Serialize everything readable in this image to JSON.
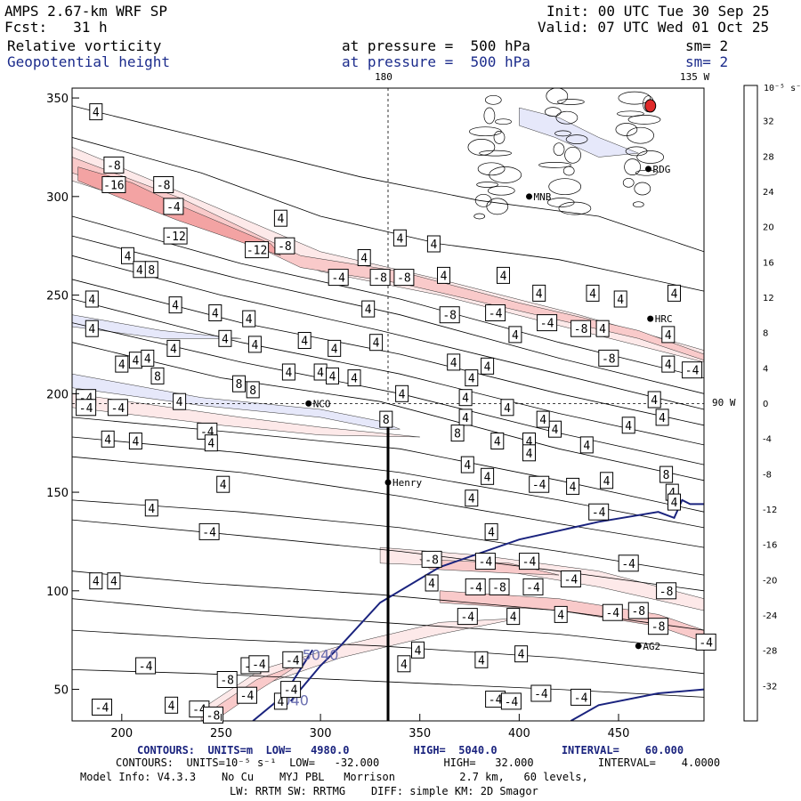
{
  "header": {
    "model": "AMPS 2.67-km WRF SP",
    "forecast": "Fcst:   31 h",
    "field1": "Relative vorticity",
    "field2": "Geopotential height",
    "init": "Init: 00 UTC Tue 30 Sep 25",
    "valid": "Valid: 07 UTC Wed 01 Oct 25",
    "pressure1": "at pressure =  500 hPa",
    "pressure2": "at pressure =  500 hPa",
    "sm1": "sm= 2",
    "sm2": "sm= 2"
  },
  "lon_labels": {
    "top_180": "180",
    "top_135w": "135 W",
    "right_90w": "90 W"
  },
  "colors": {
    "line_navy": "#1a237e",
    "neg_shades": [
      "#fde9e9",
      "#f9caca",
      "#f3a3a3",
      "#ee7a7a",
      "#e84f4f",
      "#e02a2a",
      "#ff0000"
    ],
    "pos_shades": [
      "#e6e8fa",
      "#c9cdf3",
      "#a5aaea",
      "#7d83df",
      "#5058d3",
      "#2a32c8",
      "#0000ff"
    ]
  },
  "stations": [
    {
      "name": "NCO",
      "x": 294,
      "y": 195
    },
    {
      "name": "Henry",
      "x": 334,
      "y": 155
    },
    {
      "name": "HRC",
      "x": 466,
      "y": 238
    },
    {
      "name": "AG2",
      "x": 460,
      "y": 72
    },
    {
      "name": "RDG",
      "x": 465,
      "y": 314
    },
    {
      "name": "MNB",
      "x": 405,
      "y": 300
    }
  ],
  "colorbar": {
    "unit": "10⁻⁵ s⁻¹",
    "ticks": [
      "32",
      "28",
      "24",
      "20",
      "16",
      "12",
      "8",
      "4",
      "0",
      "-4",
      "-8",
      "-12",
      "-16",
      "-20",
      "-24",
      "-28",
      "-32"
    ]
  },
  "chart_data": {
    "type": "contour",
    "title": "Relative vorticity / Geopotential height at 500 hPa",
    "x_range": [
      175,
      493
    ],
    "y_range": [
      34,
      355
    ],
    "x_ticks": [
      200,
      250,
      300,
      350,
      400,
      450
    ],
    "y_ticks": [
      50,
      100,
      150,
      200,
      250,
      300,
      350
    ],
    "vorticity_contours": {
      "units": "10^-5 s^-1",
      "low": -32.0,
      "high": 32.0,
      "interval": 4.0,
      "labels": [
        {
          "v": 4,
          "x": 187,
          "y": 343
        },
        {
          "v": -8,
          "x": 196,
          "y": 316
        },
        {
          "v": -16,
          "x": 196,
          "y": 306
        },
        {
          "v": -8,
          "x": 221,
          "y": 306
        },
        {
          "v": -4,
          "x": 226,
          "y": 295
        },
        {
          "v": 4,
          "x": 203,
          "y": 270
        },
        {
          "v": -12,
          "x": 227,
          "y": 280
        },
        {
          "v": 4,
          "x": 209,
          "y": 263
        },
        {
          "v": 8,
          "x": 215,
          "y": 263
        },
        {
          "v": -12,
          "x": 268,
          "y": 273
        },
        {
          "v": -8,
          "x": 282,
          "y": 275
        },
        {
          "v": 4,
          "x": 280,
          "y": 289
        },
        {
          "v": 4,
          "x": 322,
          "y": 269
        },
        {
          "v": 4,
          "x": 340,
          "y": 279
        },
        {
          "v": 4,
          "x": 357,
          "y": 276
        },
        {
          "v": -4,
          "x": 309,
          "y": 259
        },
        {
          "v": -8,
          "x": 330,
          "y": 259
        },
        {
          "v": -8,
          "x": 342,
          "y": 259
        },
        {
          "v": 4,
          "x": 362,
          "y": 260
        },
        {
          "v": 4,
          "x": 392,
          "y": 260
        },
        {
          "v": 4,
          "x": 185,
          "y": 248
        },
        {
          "v": 4,
          "x": 227,
          "y": 245
        },
        {
          "v": 4,
          "x": 247,
          "y": 241
        },
        {
          "v": 4,
          "x": 252,
          "y": 228
        },
        {
          "v": 4,
          "x": 267,
          "y": 225
        },
        {
          "v": 4,
          "x": 292,
          "y": 227
        },
        {
          "v": 4,
          "x": 264,
          "y": 238
        },
        {
          "v": 4,
          "x": 207,
          "y": 217
        },
        {
          "v": 4,
          "x": 213,
          "y": 218
        },
        {
          "v": 4,
          "x": 226,
          "y": 223
        },
        {
          "v": 4,
          "x": 200,
          "y": 215
        },
        {
          "v": 4,
          "x": 185,
          "y": 233
        },
        {
          "v": -8,
          "x": 365,
          "y": 240
        },
        {
          "v": -4,
          "x": 388,
          "y": 241
        },
        {
          "v": -4,
          "x": 414,
          "y": 236
        },
        {
          "v": 4,
          "x": 324,
          "y": 243
        },
        {
          "v": 4,
          "x": 410,
          "y": 251
        },
        {
          "v": 4,
          "x": 437,
          "y": 251
        },
        {
          "v": 4,
          "x": 478,
          "y": 251
        },
        {
          "v": 4,
          "x": 451,
          "y": 248
        },
        {
          "v": -8,
          "x": 431,
          "y": 233
        },
        {
          "v": 4,
          "x": 442,
          "y": 233
        },
        {
          "v": 4,
          "x": 398,
          "y": 230
        },
        {
          "v": -8,
          "x": 445,
          "y": 218
        },
        {
          "v": -4,
          "x": 487,
          "y": 212
        },
        {
          "v": 4,
          "x": 475,
          "y": 230
        },
        {
          "v": 4,
          "x": 384,
          "y": 214
        },
        {
          "v": 4,
          "x": 328,
          "y": 226
        },
        {
          "v": 4,
          "x": 307,
          "y": 223
        },
        {
          "v": 8,
          "x": 218,
          "y": 209
        },
        {
          "v": 8,
          "x": 259,
          "y": 205
        },
        {
          "v": 8,
          "x": 266,
          "y": 202
        },
        {
          "v": -4,
          "x": 182,
          "y": 198
        },
        {
          "v": -4,
          "x": 182,
          "y": 193
        },
        {
          "v": -4,
          "x": 198,
          "y": 193
        },
        {
          "v": 4,
          "x": 229,
          "y": 196
        },
        {
          "v": -4,
          "x": 243,
          "y": 181
        },
        {
          "v": 4,
          "x": 193,
          "y": 177
        },
        {
          "v": 4,
          "x": 207,
          "y": 176
        },
        {
          "v": 4,
          "x": 245,
          "y": 175
        },
        {
          "v": 4,
          "x": 284,
          "y": 211
        },
        {
          "v": 4,
          "x": 300,
          "y": 211
        },
        {
          "v": 4,
          "x": 306,
          "y": 209
        },
        {
          "v": 4,
          "x": 317,
          "y": 208
        },
        {
          "v": 4,
          "x": 341,
          "y": 200
        },
        {
          "v": 4,
          "x": 373,
          "y": 198
        },
        {
          "v": 8,
          "x": 333,
          "y": 187
        },
        {
          "v": 4,
          "x": 367,
          "y": 216
        },
        {
          "v": 4,
          "x": 376,
          "y": 208
        },
        {
          "v": 4,
          "x": 373,
          "y": 188
        },
        {
          "v": 8,
          "x": 369,
          "y": 180
        },
        {
          "v": 4,
          "x": 389,
          "y": 176
        },
        {
          "v": 4,
          "x": 405,
          "y": 176
        },
        {
          "v": 4,
          "x": 418,
          "y": 182
        },
        {
          "v": 4,
          "x": 434,
          "y": 174
        },
        {
          "v": 4,
          "x": 412,
          "y": 187
        },
        {
          "v": 4,
          "x": 455,
          "y": 184
        },
        {
          "v": 4,
          "x": 472,
          "y": 188
        },
        {
          "v": 4,
          "x": 468,
          "y": 197
        },
        {
          "v": 4,
          "x": 475,
          "y": 215
        },
        {
          "v": 4,
          "x": 394,
          "y": 193
        },
        {
          "v": 4,
          "x": 374,
          "y": 164
        },
        {
          "v": 8,
          "x": 474,
          "y": 159
        },
        {
          "v": 4,
          "x": 477,
          "y": 150
        },
        {
          "v": 4,
          "x": 251,
          "y": 154
        },
        {
          "v": 4,
          "x": 215,
          "y": 142
        },
        {
          "v": -4,
          "x": 244,
          "y": 130
        },
        {
          "v": 4,
          "x": 376,
          "y": 147
        },
        {
          "v": 4,
          "x": 384,
          "y": 158
        },
        {
          "v": 4,
          "x": 405,
          "y": 170
        },
        {
          "v": -4,
          "x": 410,
          "y": 154
        },
        {
          "v": 4,
          "x": 427,
          "y": 153
        },
        {
          "v": 4,
          "x": 444,
          "y": 156
        },
        {
          "v": -4,
          "x": 440,
          "y": 140
        },
        {
          "v": 4,
          "x": 478,
          "y": 145
        },
        {
          "v": 4,
          "x": 386,
          "y": 130
        },
        {
          "v": -4,
          "x": 383,
          "y": 115
        },
        {
          "v": -4,
          "x": 405,
          "y": 115
        },
        {
          "v": -8,
          "x": 356,
          "y": 116
        },
        {
          "v": -4,
          "x": 455,
          "y": 114
        },
        {
          "v": -4,
          "x": 426,
          "y": 106
        },
        {
          "v": -8,
          "x": 474,
          "y": 100
        },
        {
          "v": 4,
          "x": 187,
          "y": 105
        },
        {
          "v": 4,
          "x": 196,
          "y": 105
        },
        {
          "v": 4,
          "x": 356,
          "y": 104
        },
        {
          "v": -4,
          "x": 378,
          "y": 102
        },
        {
          "v": -8,
          "x": 390,
          "y": 102
        },
        {
          "v": -4,
          "x": 407,
          "y": 102
        },
        {
          "v": -4,
          "x": 447,
          "y": 89
        },
        {
          "v": -8,
          "x": 460,
          "y": 90
        },
        {
          "v": -8,
          "x": 470,
          "y": 82
        },
        {
          "v": -4,
          "x": 494,
          "y": 74
        },
        {
          "v": -4,
          "x": 374,
          "y": 87
        },
        {
          "v": 4,
          "x": 397,
          "y": 87
        },
        {
          "v": 4,
          "x": 421,
          "y": 88
        },
        {
          "v": 4,
          "x": 349,
          "y": 70
        },
        {
          "v": 4,
          "x": 401,
          "y": 68
        },
        {
          "v": 4,
          "x": 342,
          "y": 63
        },
        {
          "v": 4,
          "x": 381,
          "y": 65
        },
        {
          "v": -4,
          "x": 212,
          "y": 62
        },
        {
          "v": -4,
          "x": 265,
          "y": 62
        },
        {
          "v": -4,
          "x": 269,
          "y": 63
        },
        {
          "v": -4,
          "x": 286,
          "y": 65
        },
        {
          "v": -8,
          "x": 253,
          "y": 55
        },
        {
          "v": -4,
          "x": 263,
          "y": 47
        },
        {
          "v": 4,
          "x": 280,
          "y": 44
        },
        {
          "v": -4,
          "x": 388,
          "y": 45
        },
        {
          "v": -4,
          "x": 396,
          "y": 44
        },
        {
          "v": -4,
          "x": 411,
          "y": 48
        },
        {
          "v": -4,
          "x": 431,
          "y": 46
        },
        {
          "v": -4,
          "x": 239,
          "y": 40
        },
        {
          "v": -8,
          "x": 246,
          "y": 37
        },
        {
          "v": -4,
          "x": 285,
          "y": 50
        },
        {
          "v": 4,
          "x": 225,
          "y": 42
        },
        {
          "v": -4,
          "x": 190,
          "y": 41
        }
      ]
    },
    "height_contours": {
      "units": "m",
      "low": 4980.0,
      "high": 5040.0,
      "interval": 60.0,
      "labels": [
        "5040",
        "5040"
      ]
    }
  },
  "footer": {
    "height_line": "CONTOURS:  UNITS=m  LOW=   4980.0          HIGH=  5040.0          INTERVAL=    60.000",
    "vort_line": "CONTOURS:  UNITS=10⁻⁵ s⁻¹  LOW=   -32.000          HIGH=   32.000          INTERVAL=    4.0000",
    "model_info1": "Model Info: V4.3.3    No Cu    MYJ PBL   Morrison          2.7 km,   60 levels,",
    "model_info2": "LW: RRTM SW: RRTMG    DIFF: simple KM: 2D Smagor"
  }
}
